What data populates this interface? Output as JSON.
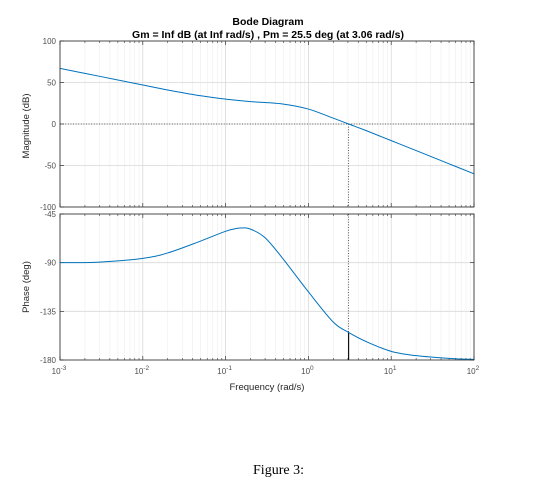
{
  "figure": {
    "caption": "Figure 3:"
  },
  "chart_data": {
    "type": "line",
    "title": "Bode Diagram",
    "subtitle": "Gm = Inf dB (at Inf rad/s) ,  Pm = 25.5 deg (at 3.06 rad/s)",
    "xlabel": "Frequency  (rad/s)",
    "x_scale": "log",
    "xlim": [
      0.001,
      100
    ],
    "x_ticks": [
      {
        "value": 0.001,
        "base": "10",
        "exp": "-3"
      },
      {
        "value": 0.01,
        "base": "10",
        "exp": "-2"
      },
      {
        "value": 0.1,
        "base": "10",
        "exp": "-1"
      },
      {
        "value": 1,
        "base": "10",
        "exp": "0"
      },
      {
        "value": 10,
        "base": "10",
        "exp": "1"
      },
      {
        "value": 100,
        "base": "10",
        "exp": "2"
      }
    ],
    "grid": true,
    "line_color": "#0072BD",
    "panels": [
      {
        "name": "magnitude",
        "ylabel": "Magnitude (dB)",
        "ylim": [
          -100,
          100
        ],
        "y_ticks": [
          100,
          50,
          0,
          -50,
          -100
        ],
        "reference_line": {
          "y": 0,
          "style": "dotted"
        },
        "series": [
          {
            "x": [
              0.001,
              0.002,
              0.005,
              0.01,
              0.02,
              0.05,
              0.1,
              0.2,
              0.5,
              1,
              2,
              3.06,
              5,
              10,
              20,
              50,
              100
            ],
            "y": [
              67,
              61,
              53,
              47,
              41,
              34,
              30,
              27,
              24,
              18,
              7,
              0,
              -8,
              -20,
              -32,
              -48,
              -60
            ]
          }
        ]
      },
      {
        "name": "phase",
        "ylabel": "Phase (deg)",
        "ylim": [
          -180,
          -45
        ],
        "y_ticks": [
          -45,
          -90,
          -135,
          -180
        ],
        "series": [
          {
            "x": [
              0.001,
              0.003,
              0.01,
              0.02,
              0.05,
              0.1,
              0.15,
              0.2,
              0.3,
              0.5,
              1,
              2,
              3.06,
              5,
              10,
              20,
              50,
              100
            ],
            "y": [
              -90,
              -89.5,
              -86,
              -81,
              -70,
              -61,
              -58,
              -59,
              -67,
              -87,
              -117,
              -145,
              -154.5,
              -163,
              -172,
              -176,
              -178.5,
              -179.5
            ]
          }
        ]
      }
    ],
    "markers": [
      {
        "type": "crossover",
        "x": 3.06,
        "mag_y": 0,
        "phase_y": -154.5
      }
    ]
  }
}
